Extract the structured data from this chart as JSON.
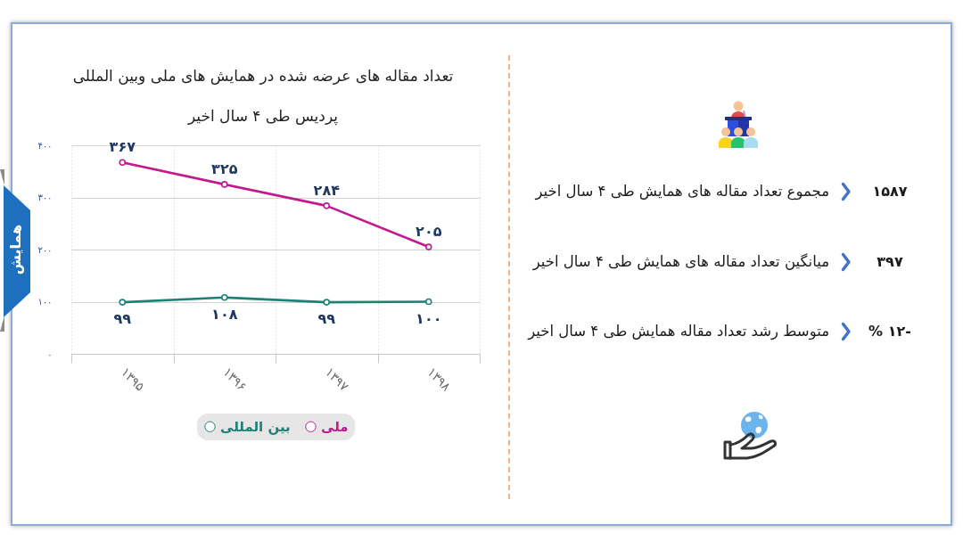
{
  "chart_data": [
    {
      "type": "line",
      "title": "تعداد مقاله های عرضه شده در همایش های ملی وبین المللی پردیس طی ۴ سال اخیر",
      "categories": [
        "۱۳۹۵",
        "۱۳۹۶",
        "۱۳۹۷",
        "۱۳۹۸"
      ],
      "series": [
        {
          "name": "ملی",
          "color": "#c21a8e",
          "values": [
            367,
            325,
            284,
            205
          ],
          "value_labels": [
            "۳۶۷",
            "۳۲۵",
            "۲۸۴",
            "۲۰۵"
          ]
        },
        {
          "name": "بین المللی",
          "color": "#1f8078",
          "values": [
            99,
            108,
            99,
            100
          ],
          "value_labels": [
            "۹۹",
            "۱۰۸",
            "۹۹",
            "۱۰۰"
          ]
        }
      ],
      "ylim": [
        0,
        400
      ],
      "yticks": [
        {
          "value": 0,
          "label": "۰"
        },
        {
          "value": 100,
          "label": "۱۰۰"
        },
        {
          "value": 200,
          "label": "۲۰۰"
        },
        {
          "value": 300,
          "label": "۳۰۰"
        },
        {
          "value": 400,
          "label": "۴۰۰"
        }
      ],
      "grid": true,
      "legend": "bottom",
      "marker": "circle",
      "annotations": [
        "همایش"
      ]
    },
    {
      "type": "other",
      "annotations": [
        "۱۵۸۷",
        "مجموع تعداد مقاله های همایش طی ۴ سال اخیر",
        "۳۹۷",
        "میانگین تعداد مقاله های همایش طی ۴ سال اخیر",
        "-۱۲ %",
        "متوسط رشد تعداد مقاله همایش طی ۴ سال اخیر"
      ]
    }
  ]
}
